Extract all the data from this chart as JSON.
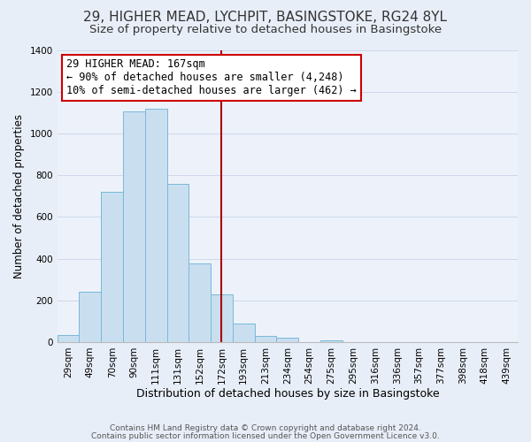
{
  "title": "29, HIGHER MEAD, LYCHPIT, BASINGSTOKE, RG24 8YL",
  "subtitle": "Size of property relative to detached houses in Basingstoke",
  "xlabel": "Distribution of detached houses by size in Basingstoke",
  "ylabel": "Number of detached properties",
  "bin_labels": [
    "29sqm",
    "49sqm",
    "70sqm",
    "90sqm",
    "111sqm",
    "131sqm",
    "152sqm",
    "172sqm",
    "193sqm",
    "213sqm",
    "234sqm",
    "254sqm",
    "275sqm",
    "295sqm",
    "316sqm",
    "336sqm",
    "357sqm",
    "377sqm",
    "398sqm",
    "418sqm",
    "439sqm"
  ],
  "bar_heights": [
    35,
    240,
    720,
    1105,
    1120,
    760,
    375,
    228,
    90,
    30,
    20,
    0,
    10,
    0,
    0,
    0,
    0,
    0,
    0,
    0,
    0
  ],
  "bar_color": "#c9dff0",
  "bar_edgecolor": "#7ab8d8",
  "vline_x": 7,
  "vline_color": "#aa0000",
  "annotation_text": "29 HIGHER MEAD: 167sqm\n← 90% of detached houses are smaller (4,248)\n10% of semi-detached houses are larger (462) →",
  "annotation_box_edgecolor": "#cc0000",
  "annotation_box_facecolor": "#ffffff",
  "ylim": [
    0,
    1400
  ],
  "yticks": [
    0,
    200,
    400,
    600,
    800,
    1000,
    1200,
    1400
  ],
  "footer_line1": "Contains HM Land Registry data © Crown copyright and database right 2024.",
  "footer_line2": "Contains public sector information licensed under the Open Government Licence v3.0.",
  "bg_color": "#e8eef8",
  "plot_bg_color": "#edf2fa",
  "title_fontsize": 11,
  "subtitle_fontsize": 9.5,
  "xlabel_fontsize": 9,
  "ylabel_fontsize": 8.5,
  "tick_fontsize": 7.5,
  "annotation_fontsize": 8.5,
  "footer_fontsize": 6.5
}
